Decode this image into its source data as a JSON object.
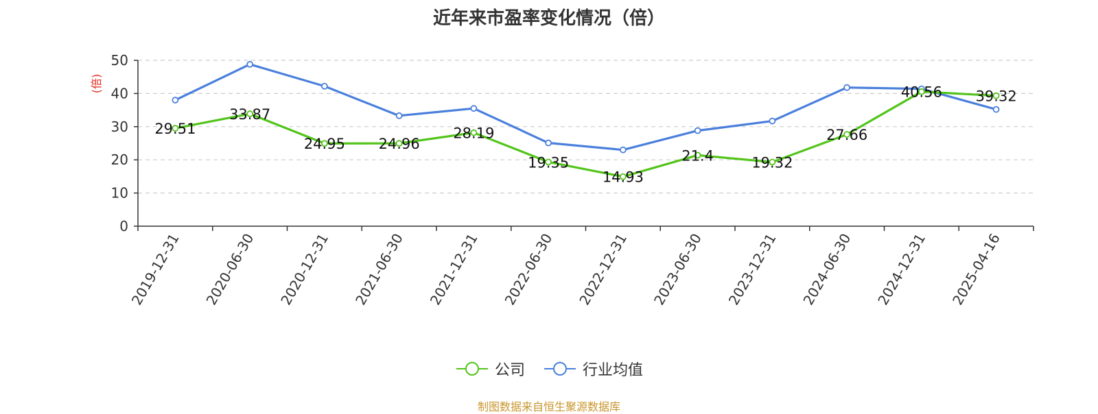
{
  "chart_data": {
    "type": "line",
    "title": "近年来市盈率变化情况（倍）",
    "ylabel": "(倍)",
    "ylim": [
      0,
      50
    ],
    "yticks": [
      0,
      10,
      20,
      30,
      40,
      50
    ],
    "grid": true,
    "legend_position": "bottom",
    "categories": [
      "2019-12-31",
      "2020-06-30",
      "2020-12-31",
      "2021-06-30",
      "2021-12-31",
      "2022-06-30",
      "2022-12-31",
      "2023-06-30",
      "2023-12-31",
      "2024-06-30",
      "2024-12-31",
      "2025-04-16"
    ],
    "series": [
      {
        "name": "公司",
        "color": "#52c41a",
        "values": [
          29.51,
          33.87,
          24.95,
          24.96,
          28.19,
          19.35,
          14.93,
          21.4,
          19.32,
          27.66,
          40.56,
          39.32
        ],
        "labels": [
          "29.51",
          "33.87",
          "24.95",
          "24.96",
          "28.19",
          "19.35",
          "14.93",
          "21.4",
          "19.32",
          "27.66",
          "40.56",
          "39.32"
        ]
      },
      {
        "name": "行业均值",
        "color": "#4a7fdc",
        "values": [
          38.0,
          48.8,
          42.2,
          33.3,
          35.5,
          25.1,
          23.0,
          28.8,
          31.7,
          41.8,
          41.4,
          35.2
        ]
      }
    ]
  },
  "source_note": "制图数据来自恒生聚源数据库",
  "colors": {
    "ylabel": "#e8271c",
    "source_note": "#c8962c",
    "axis": "#333333",
    "grid": "#cccccc"
  }
}
